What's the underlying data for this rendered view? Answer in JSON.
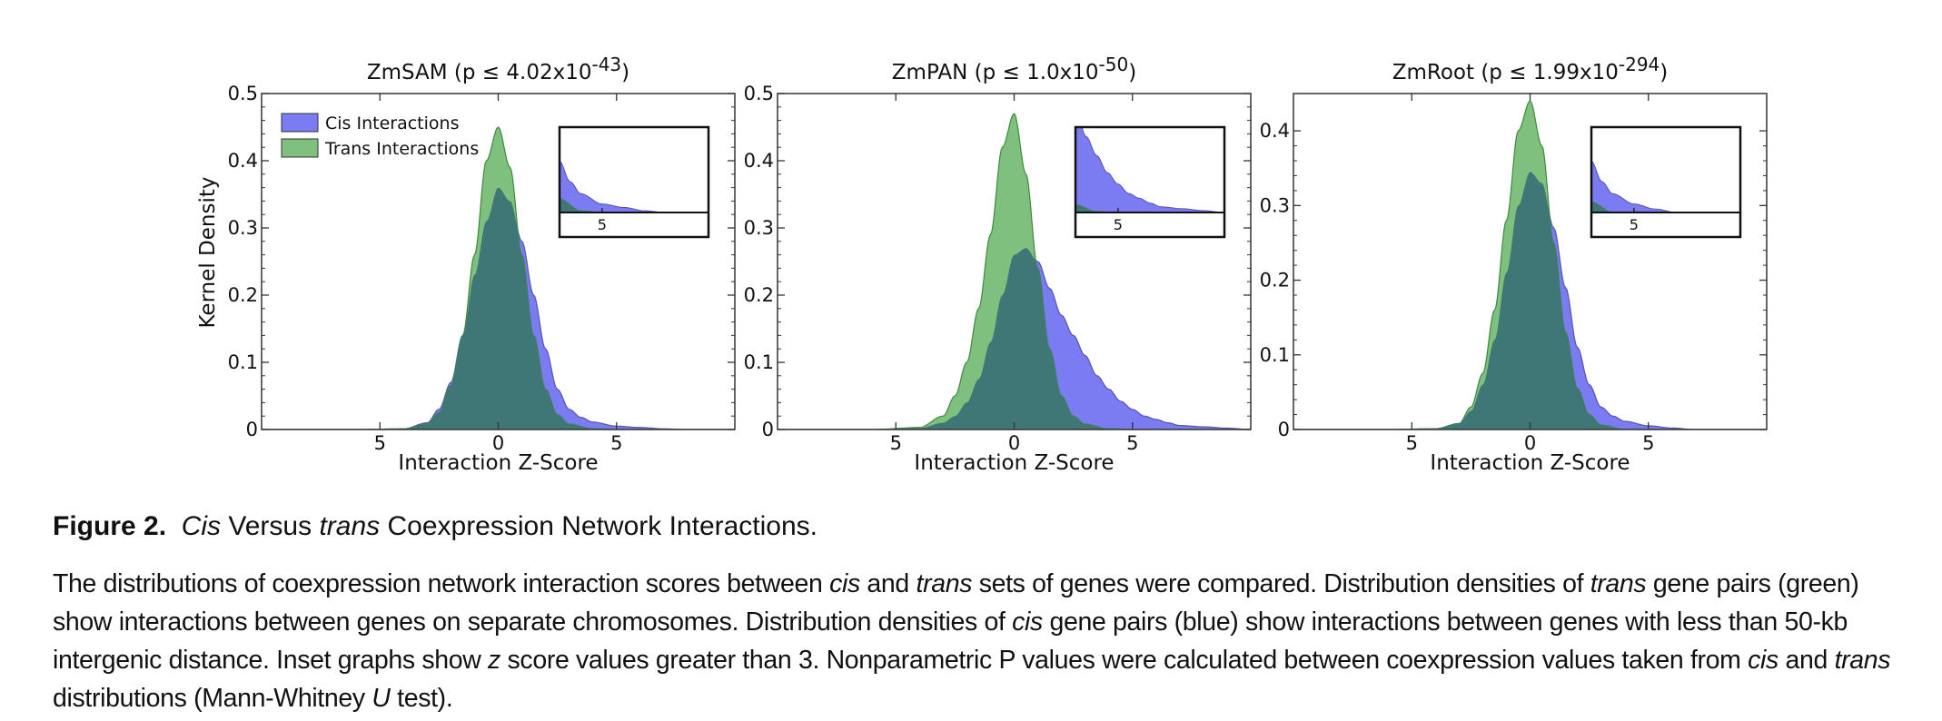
{
  "figure": {
    "label": "Figure 2.",
    "title_parts": [
      {
        "text": "Cis",
        "italic": true
      },
      {
        "text": " Versus ",
        "italic": false
      },
      {
        "text": "trans",
        "italic": true
      },
      {
        "text": " Coexpression Network Interactions.",
        "italic": false
      }
    ],
    "caption_parts": [
      {
        "text": "The distributions of coexpression network interaction scores between ",
        "italic": false
      },
      {
        "text": "cis",
        "italic": true
      },
      {
        "text": " and ",
        "italic": false
      },
      {
        "text": "trans",
        "italic": true
      },
      {
        "text": " sets of genes were compared. Distribution densities of ",
        "italic": false
      },
      {
        "text": "trans",
        "italic": true
      },
      {
        "text": " gene pairs (green) show interactions between genes on separate chromosomes. Distribution densities of ",
        "italic": false
      },
      {
        "text": "cis",
        "italic": true
      },
      {
        "text": " gene pairs (blue) show interactions between genes with less than 50-kb intergenic distance. Inset graphs show ",
        "italic": false
      },
      {
        "text": "z",
        "italic": true
      },
      {
        "text": " score values greater than 3. Nonparametric P values were calculated between coexpression values taken from ",
        "italic": false
      },
      {
        "text": "cis",
        "italic": true
      },
      {
        "text": " and ",
        "italic": false
      },
      {
        "text": "trans",
        "italic": true
      },
      {
        "text": " distributions (Mann-Whitney ",
        "italic": false
      },
      {
        "text": "U",
        "italic": true
      },
      {
        "text": " test).",
        "italic": false
      }
    ]
  },
  "colors": {
    "cis": "#7b7bf2",
    "trans": "#7fc07f",
    "overlap": "#3f7777",
    "cis_edge": "#5555aa",
    "trans_edge": "#3d8a3d"
  },
  "chart_data": [
    {
      "type": "area",
      "title_main": "ZmSAM (p ≤ 4.02x10",
      "title_exp": "-43",
      "title_end": ")",
      "xlabel": "Interaction Z-Score",
      "ylabel": "Kernel Density",
      "xlim": [
        -10,
        10
      ],
      "ylim": [
        0,
        0.5
      ],
      "yticks": [
        0,
        0.1,
        0.2,
        0.3,
        0.4,
        0.5
      ],
      "ytick_labels": [
        "0",
        "0.1",
        "0.2",
        "0.3",
        "0.4",
        "0.5"
      ],
      "xticks": [
        -5,
        0,
        5
      ],
      "xtick_labels": [
        "5",
        "0",
        "5"
      ],
      "legend": [
        "Cis Interactions",
        "Trans Interactions"
      ],
      "legend_position": "upper-left",
      "inset": {
        "xlim": [
          3,
          10
        ],
        "ylim": [
          0,
          0.05
        ],
        "xtick": 5,
        "xtick_label": "5"
      },
      "series": [
        {
          "name": "Cis Interactions",
          "x": [
            -10,
            -6,
            -4,
            -3,
            -2.5,
            -2,
            -1.5,
            -1,
            -0.5,
            0,
            0.5,
            1,
            1.5,
            2,
            2.5,
            3,
            3.5,
            4,
            5,
            6,
            7,
            8,
            10
          ],
          "y": [
            0,
            0,
            0.001,
            0.01,
            0.03,
            0.07,
            0.14,
            0.23,
            0.31,
            0.36,
            0.34,
            0.28,
            0.2,
            0.12,
            0.06,
            0.03,
            0.018,
            0.011,
            0.005,
            0.003,
            0.001,
            0,
            0
          ]
        },
        {
          "name": "Trans Interactions",
          "x": [
            -10,
            -6,
            -4,
            -3,
            -2.5,
            -2,
            -1.5,
            -1,
            -0.5,
            0,
            0.5,
            1,
            1.5,
            2,
            2.5,
            3,
            4,
            5,
            10
          ],
          "y": [
            0,
            0,
            0.001,
            0.008,
            0.025,
            0.065,
            0.14,
            0.26,
            0.4,
            0.45,
            0.39,
            0.26,
            0.14,
            0.06,
            0.022,
            0.008,
            0.001,
            0,
            0
          ]
        }
      ]
    },
    {
      "type": "area",
      "title_main": "ZmPAN (p ≤ 1.0x10",
      "title_exp": "-50",
      "title_end": ")",
      "xlabel": "Interaction Z-Score",
      "ylabel": "",
      "xlim": [
        -10,
        10
      ],
      "ylim": [
        0,
        0.5
      ],
      "yticks": [
        0,
        0.1,
        0.2,
        0.3,
        0.4,
        0.5
      ],
      "ytick_labels": [
        "0",
        "0.1",
        "0.2",
        "0.3",
        "0.4",
        "0.5"
      ],
      "xticks": [
        -5,
        0,
        5
      ],
      "xtick_labels": [
        "5",
        "0",
        "5"
      ],
      "legend": [],
      "inset": {
        "xlim": [
          3,
          10
        ],
        "ylim": [
          0,
          0.09
        ],
        "xtick": 5,
        "xtick_label": "5"
      },
      "series": [
        {
          "name": "Cis Interactions",
          "x": [
            -10,
            -6,
            -4,
            -3,
            -2.5,
            -2,
            -1.5,
            -1,
            -0.5,
            0,
            0.5,
            1,
            1.5,
            2,
            2.5,
            3,
            3.5,
            4,
            4.5,
            5,
            5.5,
            6,
            6.5,
            7,
            8,
            9,
            10
          ],
          "y": [
            0,
            0,
            0.002,
            0.01,
            0.02,
            0.04,
            0.075,
            0.13,
            0.2,
            0.26,
            0.27,
            0.25,
            0.21,
            0.17,
            0.14,
            0.11,
            0.08,
            0.06,
            0.042,
            0.03,
            0.02,
            0.015,
            0.01,
            0.006,
            0.004,
            0.002,
            0
          ]
        },
        {
          "name": "Trans Interactions",
          "x": [
            -10,
            -6,
            -4,
            -3,
            -2.5,
            -2,
            -1.5,
            -1,
            -0.5,
            0,
            0.5,
            1,
            1.5,
            2,
            2.5,
            3,
            4,
            5,
            10
          ],
          "y": [
            0,
            0,
            0.003,
            0.02,
            0.05,
            0.1,
            0.18,
            0.29,
            0.42,
            0.47,
            0.38,
            0.24,
            0.12,
            0.05,
            0.02,
            0.008,
            0.001,
            0,
            0
          ]
        }
      ]
    },
    {
      "type": "area",
      "title_main": "ZmRoot (p ≤ 1.99x10",
      "title_exp": "-294",
      "title_end": ")",
      "xlabel": "Interaction Z-Score",
      "ylabel": "",
      "xlim": [
        -10,
        10
      ],
      "ylim": [
        0,
        0.45
      ],
      "yticks": [
        0,
        0.1,
        0.2,
        0.3,
        0.4
      ],
      "ytick_labels": [
        "0",
        "0.1",
        "0.2",
        "0.3",
        "0.4"
      ],
      "xticks": [
        -5,
        0,
        5
      ],
      "xtick_labels": [
        "5",
        "0",
        "5"
      ],
      "legend": [],
      "inset": {
        "xlim": [
          3,
          10
        ],
        "ylim": [
          0,
          0.05
        ],
        "xtick": 5,
        "xtick_label": "5"
      },
      "series": [
        {
          "name": "Cis Interactions",
          "x": [
            -10,
            -6,
            -4,
            -3,
            -2.5,
            -2,
            -1.5,
            -1,
            -0.5,
            0,
            0.5,
            1,
            1.5,
            2,
            2.5,
            3,
            3.5,
            4,
            5,
            6,
            7,
            10
          ],
          "y": [
            0,
            0,
            0.001,
            0.008,
            0.025,
            0.06,
            0.12,
            0.21,
            0.3,
            0.345,
            0.33,
            0.27,
            0.19,
            0.11,
            0.06,
            0.03,
            0.018,
            0.011,
            0.005,
            0.002,
            0,
            0
          ]
        },
        {
          "name": "Trans Interactions",
          "x": [
            -10,
            -6,
            -4,
            -3,
            -2.5,
            -2,
            -1.5,
            -1,
            -0.5,
            0,
            0.5,
            1,
            1.5,
            2,
            2.5,
            3,
            4,
            10
          ],
          "y": [
            0,
            0,
            0.001,
            0.008,
            0.03,
            0.075,
            0.16,
            0.28,
            0.4,
            0.44,
            0.38,
            0.25,
            0.13,
            0.055,
            0.02,
            0.006,
            0,
            0
          ]
        }
      ]
    }
  ]
}
